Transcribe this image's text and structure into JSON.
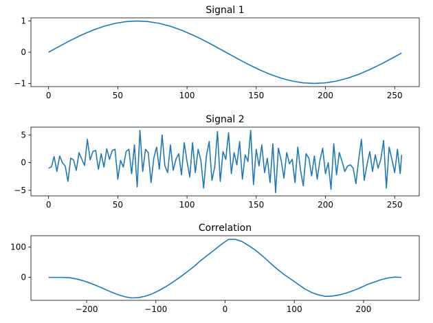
{
  "chart_data": [
    {
      "type": "line",
      "title": "Signal 1",
      "xlim": [
        -12.75,
        267.75
      ],
      "ylim": [
        -1.1,
        1.1
      ],
      "xticks": [
        0,
        50,
        100,
        150,
        200,
        250
      ],
      "yticks": [
        -1,
        0,
        1
      ],
      "xtick_labels": [
        "0",
        "50",
        "100",
        "150",
        "200",
        "250"
      ],
      "ytick_labels": [
        "−1",
        "0",
        "1"
      ],
      "grid": false,
      "series": [
        {
          "color": "#1f77b4",
          "x": [
            0,
            8,
            16,
            24,
            32,
            40,
            48,
            56,
            64,
            72,
            80,
            88,
            96,
            104,
            112,
            120,
            128,
            136,
            144,
            152,
            160,
            168,
            176,
            184,
            192,
            200,
            208,
            216,
            224,
            232,
            240,
            248,
            255
          ],
          "y": [
            0.0,
            0.195,
            0.383,
            0.556,
            0.707,
            0.831,
            0.924,
            0.981,
            1.0,
            0.981,
            0.924,
            0.831,
            0.707,
            0.556,
            0.383,
            0.195,
            0.0,
            -0.195,
            -0.383,
            -0.556,
            -0.707,
            -0.831,
            -0.924,
            -0.981,
            -1.0,
            -0.981,
            -0.924,
            -0.831,
            -0.707,
            -0.556,
            -0.383,
            -0.195,
            -0.025
          ]
        }
      ]
    },
    {
      "type": "line",
      "title": "Signal 2",
      "xlim": [
        -12.75,
        267.75
      ],
      "ylim": [
        -6.0,
        6.4
      ],
      "xticks": [
        0,
        50,
        100,
        150,
        200,
        250
      ],
      "yticks": [
        -5,
        0,
        5
      ],
      "xtick_labels": [
        "0",
        "50",
        "100",
        "150",
        "200",
        "250"
      ],
      "ytick_labels": [
        "−5",
        "0",
        "5"
      ],
      "grid": false,
      "series": [
        {
          "color": "#1f77b4",
          "x": [
            0,
            2,
            4,
            6,
            8,
            10,
            12,
            14,
            16,
            18,
            20,
            22,
            24,
            26,
            28,
            30,
            32,
            34,
            36,
            38,
            40,
            42,
            44,
            46,
            48,
            50,
            52,
            54,
            56,
            58,
            60,
            62,
            64,
            66,
            68,
            70,
            72,
            74,
            76,
            78,
            80,
            82,
            84,
            86,
            88,
            90,
            92,
            94,
            96,
            98,
            100,
            102,
            104,
            106,
            108,
            110,
            112,
            114,
            116,
            118,
            120,
            122,
            124,
            126,
            128,
            130,
            132,
            134,
            136,
            138,
            140,
            142,
            144,
            146,
            148,
            150,
            152,
            154,
            156,
            158,
            160,
            162,
            164,
            166,
            168,
            170,
            172,
            174,
            176,
            178,
            180,
            182,
            184,
            186,
            188,
            190,
            192,
            194,
            196,
            198,
            200,
            202,
            204,
            206,
            208,
            210,
            212,
            214,
            216,
            218,
            220,
            222,
            224,
            226,
            228,
            230,
            232,
            234,
            236,
            238,
            240,
            242,
            244,
            246,
            248,
            250,
            252,
            254,
            255
          ],
          "y": [
            -1.0,
            -0.8,
            1.1,
            -1.6,
            1.2,
            0.0,
            -0.6,
            -3.4,
            0.8,
            0.5,
            -1.4,
            1.8,
            0.6,
            -0.5,
            4.2,
            0.5,
            2.0,
            2.2,
            -1.2,
            1.6,
            -0.8,
            2.5,
            0.6,
            2.2,
            2.4,
            -3.0,
            0.4,
            -0.8,
            2.0,
            2.4,
            -2.0,
            3.2,
            -4.4,
            5.8,
            -1.6,
            2.4,
            1.8,
            -3.6,
            0.8,
            2.8,
            -1.2,
            5.0,
            -0.6,
            -1.8,
            3.2,
            -1.4,
            0.6,
            1.6,
            -2.2,
            3.6,
            0.2,
            -2.6,
            3.6,
            -1.8,
            2.4,
            0.4,
            -4.6,
            1.2,
            3.8,
            -3.2,
            -0.8,
            5.6,
            -3.4,
            2.0,
            0.6,
            5.4,
            -2.0,
            1.8,
            -0.4,
            3.8,
            -3.0,
            1.4,
            0.2,
            5.8,
            -4.0,
            2.4,
            -0.6,
            3.2,
            -1.8,
            0.8,
            -3.6,
            3.4,
            -5.4,
            2.6,
            0.4,
            -2.8,
            1.8,
            -0.2,
            0.6,
            -3.6,
            2.8,
            -1.4,
            -4.2,
            1.6,
            0.8,
            -2.4,
            1.2,
            -3.0,
            0.4,
            2.6,
            -2.0,
            0.0,
            -4.8,
            3.4,
            -2.2,
            1.8,
            0.2,
            -1.6,
            -0.6,
            -0.4,
            -1.0,
            -3.8,
            0.6,
            4.2,
            -3.2,
            -0.4,
            2.0,
            -1.6,
            1.4,
            -1.0,
            0.6,
            4.0,
            -4.6,
            2.8,
            0.6,
            -1.8,
            2.4,
            -2.0,
            1.4
          ]
        }
      ]
    },
    {
      "type": "line",
      "title": "Correlation",
      "xlim": [
        -280.5,
        280.5
      ],
      "ylim": [
        -76,
        138
      ],
      "xticks": [
        -200,
        -100,
        0,
        100,
        200
      ],
      "yticks": [
        0,
        100
      ],
      "xtick_labels": [
        "−200",
        "−100",
        "0",
        "100",
        "200"
      ],
      "ytick_labels": [
        "0",
        "100"
      ],
      "grid": false,
      "series": [
        {
          "color": "#1f77b4",
          "x": [
            -255,
            -245,
            -235,
            -225,
            -215,
            -205,
            -195,
            -185,
            -175,
            -165,
            -155,
            -145,
            -135,
            -125,
            -115,
            -105,
            -95,
            -85,
            -75,
            -65,
            -55,
            -45,
            -35,
            -25,
            -15,
            -5,
            5,
            15,
            25,
            35,
            45,
            55,
            65,
            75,
            85,
            95,
            105,
            115,
            125,
            135,
            145,
            155,
            165,
            175,
            185,
            195,
            205,
            215,
            225,
            235,
            245,
            255
          ],
          "y": [
            0,
            0,
            0,
            -1,
            -5,
            -11,
            -19,
            -28,
            -38,
            -48,
            -57,
            -64,
            -68,
            -67,
            -62,
            -54,
            -43,
            -30,
            -15,
            1,
            18,
            36,
            56,
            74,
            92,
            110,
            126,
            126,
            118,
            104,
            88,
            69,
            48,
            28,
            10,
            -6,
            -22,
            -38,
            -50,
            -58,
            -63,
            -62,
            -58,
            -52,
            -44,
            -35,
            -24,
            -16,
            -8,
            -2,
            1,
            0
          ]
        }
      ]
    }
  ]
}
